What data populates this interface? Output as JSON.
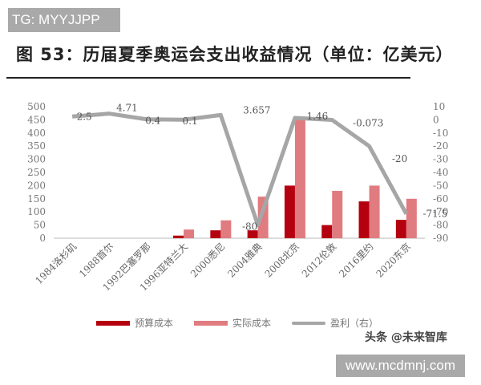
{
  "watermark_top": "TG: MYYJJPP",
  "title": "图 53：历届夏季奥运会支出收益情况（单位：亿美元）",
  "legend": {
    "budget": "预算成本",
    "actual": "实际成本",
    "profit": "盈利（右）"
  },
  "watermark_source": "头条 @未来智库",
  "watermark_url": "www.mcdmnj.com",
  "colors": {
    "budget": "#b5000f",
    "actual": "#e07b80",
    "profit": "#a6a6a6"
  },
  "chart_data": {
    "type": "bar+line",
    "title": "图 53：历届夏季奥运会支出收益情况（单位：亿美元）",
    "categories": [
      "1984洛杉矶",
      "1988首尔",
      "1992巴塞罗那",
      "1996亚特兰大",
      "2000悉尼",
      "2004雅典",
      "2008北京",
      "2012伦敦",
      "2016里约",
      "2020东京"
    ],
    "series": [
      {
        "name": "预算成本",
        "type": "bar",
        "axis": "left",
        "values": [
          0,
          0,
          0,
          10,
          30,
          30,
          200,
          50,
          140,
          70
        ]
      },
      {
        "name": "实际成本",
        "type": "bar",
        "axis": "left",
        "values": [
          0,
          0,
          0,
          33,
          68,
          158,
          458,
          180,
          200,
          150
        ]
      },
      {
        "name": "盈利（右）",
        "type": "line",
        "axis": "right",
        "values": [
          2.5,
          4.71,
          0.4,
          0.1,
          3.657,
          -80,
          1.46,
          -0.073,
          -20,
          -71.5
        ],
        "labels": [
          "2.5",
          "4.71",
          "0.4",
          "0.1",
          "3.657",
          "-80",
          "1.46",
          "-0.073",
          "-20",
          "-71.5"
        ]
      }
    ],
    "left_axis": {
      "ylim": [
        0,
        500
      ],
      "ticks": [
        0,
        50,
        100,
        150,
        200,
        250,
        300,
        350,
        400,
        450,
        500
      ]
    },
    "right_axis": {
      "ylim": [
        -90,
        10
      ],
      "ticks": [
        10,
        0,
        -10,
        -20,
        -30,
        -40,
        -50,
        -60,
        -70,
        -80,
        -90
      ]
    },
    "xlabel": "",
    "ylabel": "",
    "grid": false,
    "legend_position": "bottom"
  }
}
